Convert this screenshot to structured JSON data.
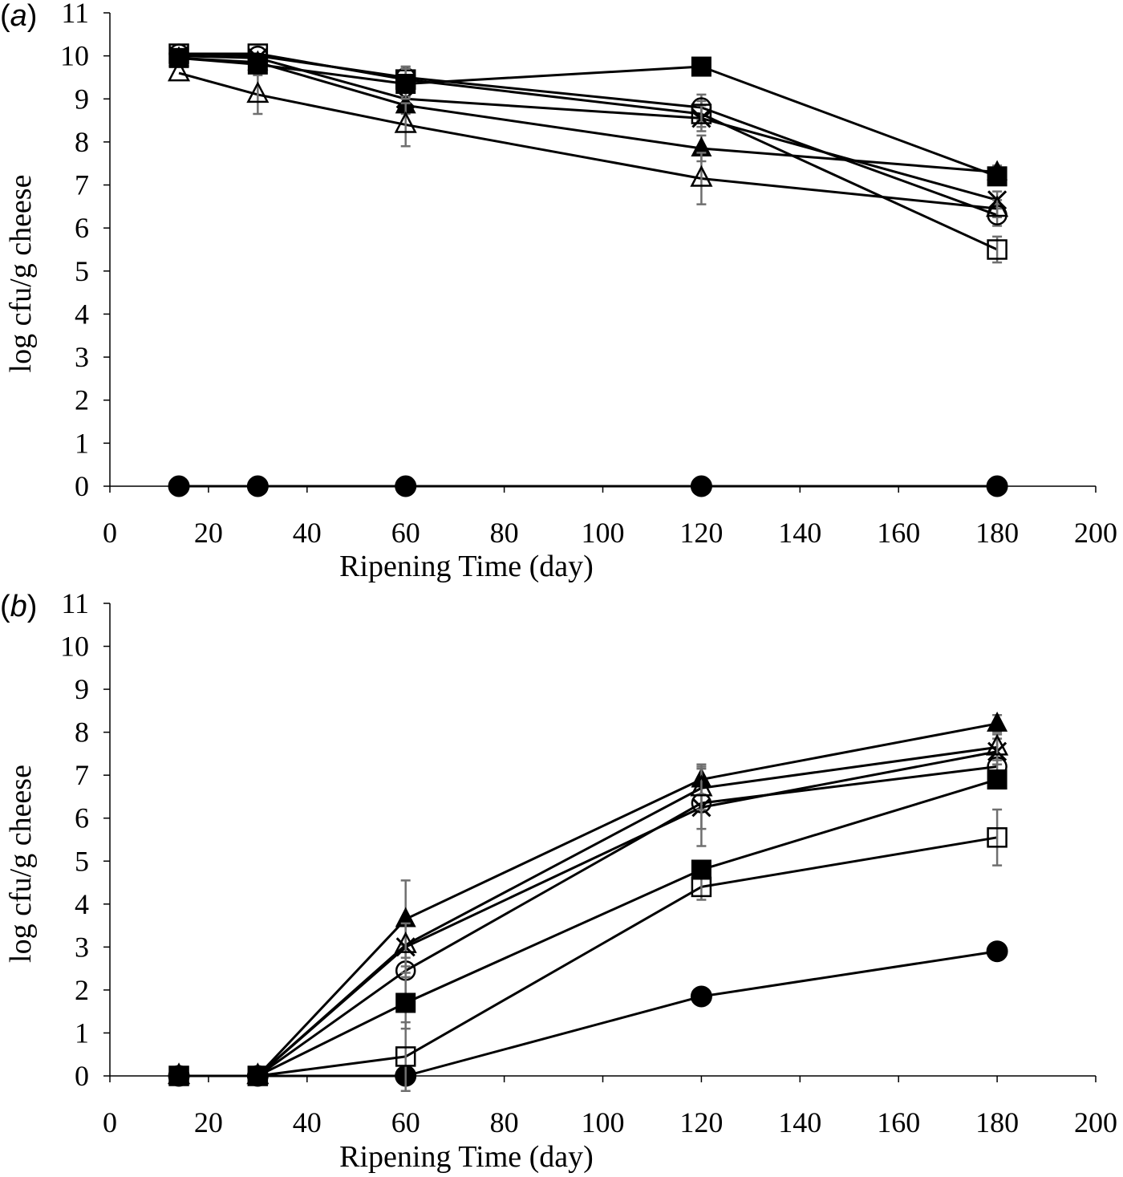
{
  "chart_data": [
    {
      "type": "line",
      "panel_label": "a",
      "xlabel": "Ripening Time (day)",
      "ylabel": "log cfu/g cheese",
      "xlim": [
        0,
        200
      ],
      "ylim": [
        0,
        11
      ],
      "x_ticks": [
        "0",
        "20",
        "40",
        "60",
        "80",
        "100",
        "120",
        "140",
        "160",
        "180",
        "200"
      ],
      "y_ticks": [
        "0",
        "1",
        "2",
        "3",
        "4",
        "5",
        "6",
        "7",
        "8",
        "9",
        "10",
        "11"
      ],
      "grid": false,
      "x": [
        14,
        30,
        60,
        120,
        180
      ],
      "series": [
        {
          "name": "filled-circle",
          "marker": "filled-circle",
          "values": [
            0,
            0,
            0,
            0,
            0
          ],
          "errors": [
            0,
            0,
            0,
            0,
            0
          ]
        },
        {
          "name": "open-circle",
          "marker": "open-circle",
          "values": [
            10.05,
            10.0,
            9.5,
            8.8,
            6.3
          ],
          "errors": [
            0,
            0,
            0.25,
            0.3,
            0.25
          ]
        },
        {
          "name": "cross",
          "marker": "cross",
          "values": [
            10.0,
            9.95,
            9.0,
            8.55,
            6.65
          ],
          "errors": [
            0,
            0,
            0.2,
            0.3,
            0.2
          ]
        },
        {
          "name": "filled-triangle",
          "marker": "filled-triangle",
          "values": [
            9.95,
            9.85,
            8.85,
            7.85,
            7.3
          ],
          "errors": [
            0,
            0,
            0.2,
            0.3,
            0.15
          ]
        },
        {
          "name": "open-triangle",
          "marker": "open-triangle",
          "values": [
            9.6,
            9.1,
            8.4,
            7.15,
            6.45
          ],
          "errors": [
            0,
            0.45,
            0.5,
            0.6,
            0.2
          ]
        },
        {
          "name": "open-square",
          "marker": "open-square",
          "values": [
            10.05,
            10.05,
            9.45,
            8.65,
            5.5
          ],
          "errors": [
            0,
            0,
            0.3,
            0.3,
            0.3
          ]
        },
        {
          "name": "filled-square",
          "marker": "filled-square",
          "values": [
            9.95,
            9.8,
            9.35,
            9.75,
            7.2
          ],
          "errors": [
            0,
            0,
            0.35,
            0,
            0.15
          ]
        }
      ]
    },
    {
      "type": "line",
      "panel_label": "b",
      "xlabel": "Ripening Time (day)",
      "ylabel": "log cfu/g cheese",
      "xlim": [
        0,
        200
      ],
      "ylim": [
        0,
        11
      ],
      "x_ticks": [
        "0",
        "20",
        "40",
        "60",
        "80",
        "100",
        "120",
        "140",
        "160",
        "180",
        "200"
      ],
      "y_ticks": [
        "0",
        "1",
        "2",
        "3",
        "4",
        "5",
        "6",
        "7",
        "8",
        "9",
        "10",
        "11"
      ],
      "grid": false,
      "x": [
        14,
        30,
        60,
        120,
        180
      ],
      "series": [
        {
          "name": "filled-circle",
          "marker": "filled-circle",
          "values": [
            0,
            0,
            0,
            1.85,
            2.9
          ],
          "errors": [
            0,
            0,
            0,
            0,
            0
          ]
        },
        {
          "name": "open-circle",
          "marker": "open-circle",
          "values": [
            0,
            0,
            2.45,
            6.35,
            7.2
          ],
          "errors": [
            0,
            0,
            0.6,
            0.6,
            0.2
          ]
        },
        {
          "name": "cross",
          "marker": "cross",
          "values": [
            0,
            0,
            3.0,
            6.25,
            7.55
          ],
          "errors": [
            0,
            0,
            0.6,
            0.9,
            0.3
          ]
        },
        {
          "name": "filled-triangle",
          "marker": "filled-triangle",
          "values": [
            0,
            0,
            3.65,
            6.9,
            8.2
          ],
          "errors": [
            0,
            0,
            0.9,
            0.35,
            0.2
          ]
        },
        {
          "name": "open-triangle",
          "marker": "open-triangle",
          "values": [
            0,
            0,
            3.05,
            6.7,
            7.65
          ],
          "errors": [
            0,
            0,
            0.5,
            0.5,
            0.3
          ]
        },
        {
          "name": "open-square",
          "marker": "open-square",
          "values": [
            0,
            0,
            0.45,
            4.4,
            5.55
          ],
          "errors": [
            0,
            0,
            0.8,
            0.3,
            0.65
          ]
        },
        {
          "name": "filled-square",
          "marker": "filled-square",
          "values": [
            0,
            0,
            1.7,
            4.8,
            6.9
          ],
          "errors": [
            0,
            0,
            0.6,
            0.2,
            0.2
          ]
        }
      ]
    }
  ],
  "colors": {
    "line": "#000000",
    "error_bar": "#6f6f6f",
    "axis": "#000000",
    "background": "#ffffff"
  }
}
